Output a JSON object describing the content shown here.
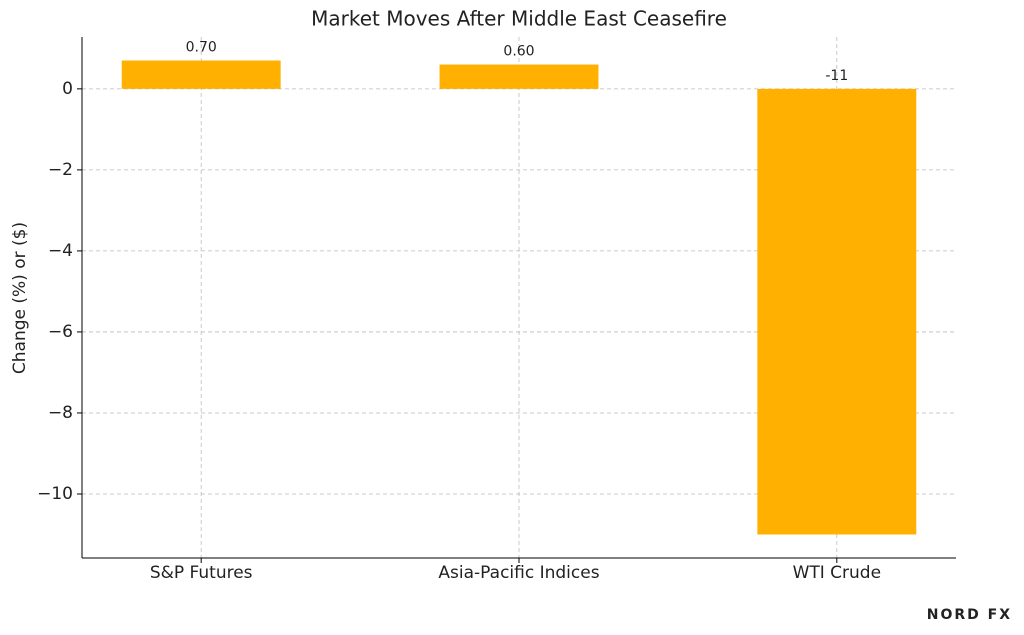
{
  "chart_data": {
    "type": "bar",
    "title": "Market Moves After Middle East Ceasefire",
    "y_label": "Change (%) or ($)",
    "categories": [
      "S&P Futures",
      "Asia-Pacific Indices",
      "WTI Crude"
    ],
    "values": [
      0.7,
      0.6,
      -11
    ],
    "value_labels": [
      "0.70",
      "0.60",
      "-11"
    ],
    "color": "#ffb000",
    "ylim": [
      -11.58,
      1.28
    ],
    "yticks": [
      {
        "value": -10,
        "label": "−10"
      },
      {
        "value": -8,
        "label": "−8"
      },
      {
        "value": -6,
        "label": "−6"
      },
      {
        "value": -4,
        "label": "−4"
      },
      {
        "value": -2,
        "label": "−2"
      },
      0
    ],
    "grid": true,
    "logo": "NORD FX"
  }
}
